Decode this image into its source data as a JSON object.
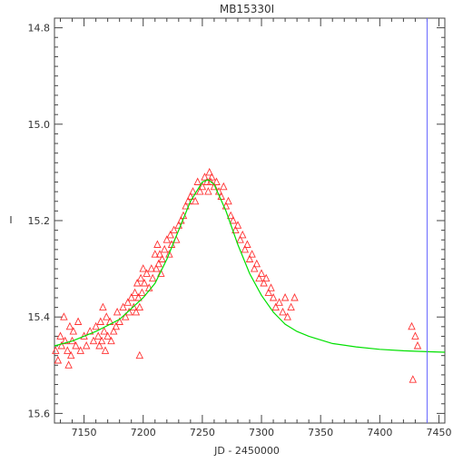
{
  "chart_data": {
    "type": "scatter",
    "title": "MB15330I",
    "xlabel": "JD - 2450000",
    "ylabel": "I",
    "xlim": [
      7125,
      7455
    ],
    "ylim": [
      15.62,
      14.78
    ],
    "y_axis_inverted": true,
    "x_ticks": [
      7150,
      7200,
      7250,
      7300,
      7350,
      7400,
      7450
    ],
    "y_ticks": [
      14.8,
      15.0,
      15.2,
      15.4,
      15.6
    ],
    "x_tick_labels": [
      "7150",
      "7200",
      "7250",
      "7300",
      "7350",
      "7400",
      "7450"
    ],
    "y_tick_labels": [
      "14.8",
      "15.0",
      "15.2",
      "15.4",
      "15.6"
    ],
    "grid": false,
    "series": [
      {
        "type": "scatter",
        "marker": "triangle-open",
        "color": "#ff3333",
        "x": [
          7126,
          7128,
          7130,
          7131,
          7133,
          7134,
          7136,
          7137,
          7138,
          7139,
          7140,
          7141,
          7143,
          7145,
          7147,
          7150,
          7152,
          7155,
          7158,
          7160,
          7162,
          7163,
          7164,
          7165,
          7166,
          7167,
          7168,
          7169,
          7170,
          7172,
          7173,
          7175,
          7177,
          7178,
          7180,
          7183,
          7185,
          7187,
          7188,
          7190,
          7192,
          7193,
          7194,
          7195,
          7196,
          7197,
          7198,
          7199,
          7200,
          7201,
          7203,
          7205,
          7207,
          7208,
          7210,
          7211,
          7212,
          7213,
          7214,
          7215,
          7216,
          7218,
          7220,
          7222,
          7223,
          7224,
          7226,
          7228,
          7230,
          7232,
          7234,
          7236,
          7238,
          7240,
          7242,
          7244,
          7246,
          7248,
          7250,
          7252,
          7254,
          7255,
          7256,
          7257,
          7258,
          7260,
          7262,
          7264,
          7266,
          7268,
          7270,
          7272,
          7274,
          7276,
          7278,
          7280,
          7282,
          7284,
          7286,
          7288,
          7290,
          7292,
          7294,
          7296,
          7298,
          7300,
          7302,
          7304,
          7306,
          7308,
          7310,
          7312,
          7315,
          7318,
          7320,
          7322,
          7325,
          7328,
          7197,
          7427,
          7428,
          7430,
          7432
        ],
        "y": [
          15.47,
          15.49,
          15.44,
          15.46,
          15.4,
          15.45,
          15.47,
          15.5,
          15.42,
          15.48,
          15.45,
          15.43,
          15.46,
          15.41,
          15.47,
          15.44,
          15.46,
          15.43,
          15.45,
          15.42,
          15.44,
          15.46,
          15.41,
          15.45,
          15.38,
          15.43,
          15.47,
          15.4,
          15.44,
          15.41,
          15.45,
          15.43,
          15.42,
          15.39,
          15.41,
          15.38,
          15.4,
          15.37,
          15.39,
          15.36,
          15.38,
          15.35,
          15.39,
          15.33,
          15.36,
          15.38,
          15.32,
          15.35,
          15.3,
          15.33,
          15.31,
          15.34,
          15.3,
          15.32,
          15.27,
          15.3,
          15.25,
          15.29,
          15.27,
          15.31,
          15.28,
          15.26,
          15.24,
          15.27,
          15.23,
          15.25,
          15.22,
          15.24,
          15.21,
          15.2,
          15.19,
          15.17,
          15.16,
          15.15,
          15.14,
          15.16,
          15.12,
          15.14,
          15.13,
          15.11,
          15.12,
          15.14,
          15.1,
          15.12,
          15.11,
          15.13,
          15.12,
          15.14,
          15.15,
          15.13,
          15.17,
          15.16,
          15.19,
          15.2,
          15.22,
          15.21,
          15.24,
          15.23,
          15.26,
          15.25,
          15.28,
          15.27,
          15.3,
          15.29,
          15.32,
          15.31,
          15.33,
          15.32,
          15.35,
          15.34,
          15.36,
          15.38,
          15.37,
          15.39,
          15.36,
          15.4,
          15.38,
          15.36,
          15.48,
          15.42,
          15.53,
          15.44,
          15.46
        ]
      },
      {
        "type": "line",
        "color": "#00e000",
        "x": [
          7125,
          7140,
          7160,
          7180,
          7200,
          7210,
          7220,
          7230,
          7240,
          7250,
          7255,
          7260,
          7270,
          7280,
          7290,
          7300,
          7310,
          7320,
          7330,
          7340,
          7360,
          7380,
          7400,
          7420,
          7440,
          7455
        ],
        "y": [
          15.46,
          15.45,
          15.43,
          15.405,
          15.36,
          15.33,
          15.28,
          15.22,
          15.16,
          15.12,
          15.115,
          15.125,
          15.18,
          15.25,
          15.31,
          15.355,
          15.39,
          15.415,
          15.43,
          15.44,
          15.455,
          15.462,
          15.467,
          15.47,
          15.472,
          15.473
        ]
      },
      {
        "type": "vertical-line",
        "color": "#6666ff",
        "x": 7440
      }
    ]
  }
}
